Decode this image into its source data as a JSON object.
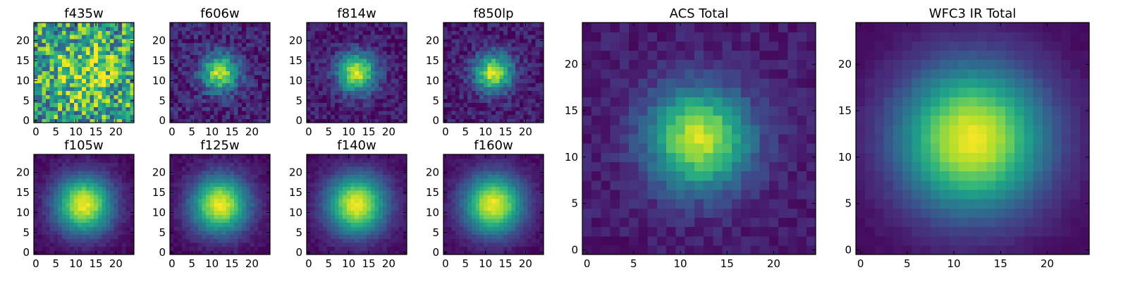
{
  "figure": {
    "background": "#ffffff",
    "colormap": "viridis",
    "colors": [
      "#440154",
      "#482878",
      "#3e4989",
      "#31688e",
      "#26828e",
      "#1f9e89",
      "#35b779",
      "#6ece58",
      "#b5de2b",
      "#fde725"
    ]
  },
  "chart_data": [
    {
      "type": "heatmap",
      "title": "f435w",
      "grid_size": 25,
      "xlim": [
        -0.5,
        24.5
      ],
      "ylim": [
        -0.5,
        24.5
      ],
      "xticks": [
        0,
        5,
        10,
        15,
        20
      ],
      "yticks": [
        0,
        5,
        10,
        15,
        20
      ],
      "center": [
        12,
        12
      ],
      "noise": 0.45,
      "floor": 0.55,
      "peak": 0.25,
      "spread": 6,
      "seed": 11
    },
    {
      "type": "heatmap",
      "title": "f606w",
      "grid_size": 25,
      "xlim": [
        -0.5,
        24.5
      ],
      "ylim": [
        -0.5,
        24.5
      ],
      "xticks": [
        0,
        5,
        10,
        15,
        20
      ],
      "yticks": [
        0,
        5,
        10,
        15,
        20
      ],
      "center": [
        12,
        12
      ],
      "noise": 0.25,
      "floor": 0.2,
      "peak": 0.8,
      "spread": 3.2,
      "seed": 23
    },
    {
      "type": "heatmap",
      "title": "f814w",
      "grid_size": 25,
      "xlim": [
        -0.5,
        24.5
      ],
      "ylim": [
        -0.5,
        24.5
      ],
      "xticks": [
        0,
        5,
        10,
        15,
        20
      ],
      "yticks": [
        0,
        5,
        10,
        15,
        20
      ],
      "center": [
        12,
        12
      ],
      "noise": 0.2,
      "floor": 0.15,
      "peak": 0.85,
      "spread": 3.4,
      "seed": 37
    },
    {
      "type": "heatmap",
      "title": "f850lp",
      "grid_size": 25,
      "xlim": [
        -0.5,
        24.5
      ],
      "ylim": [
        -0.5,
        24.5
      ],
      "xticks": [
        0,
        5,
        10,
        15,
        20
      ],
      "yticks": [
        0,
        5,
        10,
        15,
        20
      ],
      "center": [
        12,
        12
      ],
      "noise": 0.22,
      "floor": 0.15,
      "peak": 0.85,
      "spread": 3.3,
      "seed": 41
    },
    {
      "type": "heatmap",
      "title": "f105w",
      "grid_size": 25,
      "xlim": [
        -0.5,
        24.5
      ],
      "ylim": [
        -0.5,
        24.5
      ],
      "xticks": [
        0,
        5,
        10,
        15,
        20
      ],
      "yticks": [
        0,
        5,
        10,
        15,
        20
      ],
      "center": [
        12,
        12
      ],
      "noise": 0.08,
      "floor": 0.05,
      "peak": 0.95,
      "spread": 5,
      "seed": 53
    },
    {
      "type": "heatmap",
      "title": "f125w",
      "grid_size": 25,
      "xlim": [
        -0.5,
        24.5
      ],
      "ylim": [
        -0.5,
        24.5
      ],
      "xticks": [
        0,
        5,
        10,
        15,
        20
      ],
      "yticks": [
        0,
        5,
        10,
        15,
        20
      ],
      "center": [
        12,
        12
      ],
      "noise": 0.08,
      "floor": 0.05,
      "peak": 0.95,
      "spread": 5,
      "seed": 67
    },
    {
      "type": "heatmap",
      "title": "f140w",
      "grid_size": 25,
      "xlim": [
        -0.5,
        24.5
      ],
      "ylim": [
        -0.5,
        24.5
      ],
      "xticks": [
        0,
        5,
        10,
        15,
        20
      ],
      "yticks": [
        0,
        5,
        10,
        15,
        20
      ],
      "center": [
        12,
        12
      ],
      "noise": 0.07,
      "floor": 0.05,
      "peak": 0.95,
      "spread": 5.2,
      "seed": 71
    },
    {
      "type": "heatmap",
      "title": "f160w",
      "grid_size": 25,
      "xlim": [
        -0.5,
        24.5
      ],
      "ylim": [
        -0.5,
        24.5
      ],
      "xticks": [
        0,
        5,
        10,
        15,
        20
      ],
      "yticks": [
        0,
        5,
        10,
        15,
        20
      ],
      "center": [
        12,
        12
      ],
      "noise": 0.07,
      "floor": 0.05,
      "peak": 0.95,
      "spread": 5.2,
      "seed": 83
    },
    {
      "type": "heatmap",
      "title": "ACS Total",
      "grid_size": 25,
      "xlim": [
        -0.5,
        24.5
      ],
      "ylim": [
        -0.5,
        24.5
      ],
      "xticks": [
        0,
        5,
        10,
        15,
        20
      ],
      "yticks": [
        0,
        5,
        10,
        15,
        20
      ],
      "center": [
        12,
        12
      ],
      "noise": 0.12,
      "floor": 0.15,
      "peak": 0.85,
      "spread": 3.8,
      "seed": 97
    },
    {
      "type": "heatmap",
      "title": "WFC3 IR Total",
      "grid_size": 25,
      "xlim": [
        -0.5,
        24.5
      ],
      "ylim": [
        -0.5,
        24.5
      ],
      "xticks": [
        0,
        5,
        10,
        15,
        20
      ],
      "yticks": [
        0,
        5,
        10,
        15,
        20
      ],
      "center": [
        12,
        12
      ],
      "noise": 0.03,
      "floor": 0.04,
      "peak": 0.96,
      "spread": 5.5,
      "seed": 101
    }
  ]
}
